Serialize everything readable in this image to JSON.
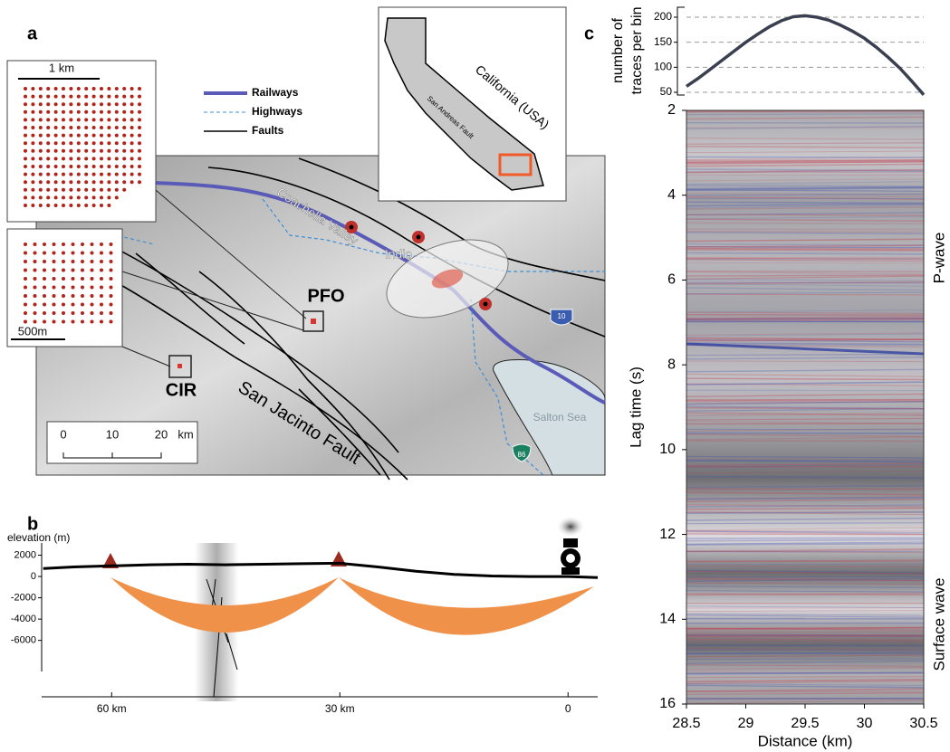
{
  "panel_labels": [
    "a",
    "b",
    "c"
  ],
  "map": {
    "legend": [
      "Railways",
      "Highways",
      "Faults"
    ],
    "places": {
      "coachella_valley": "Coachella Valley",
      "indio": "Indio",
      "pfo": "PFO",
      "cir": "CIR",
      "san_jacinto": "San Jacinto Fault",
      "salton_sea": "Salton Sea",
      "california": "California (USA)",
      "san_andreas": "San Andreas Fault"
    },
    "array_scales": [
      "1 km",
      "500m"
    ],
    "scale_bar": {
      "ticks": [
        "0",
        "10",
        "20"
      ],
      "unit": "km"
    },
    "shields": [
      "10",
      "86"
    ]
  },
  "chart_data": [
    {
      "type": "line",
      "y_label": "elevation (m)",
      "x": [
        69,
        65,
        60,
        55,
        50,
        45,
        40,
        35,
        30,
        25,
        20,
        15,
        10,
        5,
        0,
        -3.9
      ],
      "series": [
        {
          "color": "#000000",
          "values": [
            750,
            900,
            1000,
            1100,
            1150,
            1100,
            1150,
            1200,
            1250,
            900,
            500,
            200,
            50,
            0,
            0,
            -100
          ]
        }
      ],
      "xlim": [
        69.2,
        -3.9
      ],
      "ylim": [
        -11300,
        3150
      ],
      "xticks": [
        {
          "value": 60,
          "label": "60 km"
        },
        {
          "value": 30,
          "label": "30 km"
        },
        0
      ],
      "yticks": [
        2000,
        0,
        -2000,
        -4000,
        -6000
      ]
    },
    {
      "type": "line",
      "y_label": [
        "number of",
        "traces per bin"
      ],
      "x": [
        28.5,
        28.6,
        28.7,
        28.8,
        28.9,
        29,
        29.1,
        29.2,
        29.3,
        29.4,
        29.5,
        29.6,
        29.7,
        29.8,
        29.9,
        30,
        30.1,
        30.2,
        30.3,
        30.4,
        30.5
      ],
      "series": [
        {
          "color": "#3a4050",
          "values": [
            62,
            78,
            96,
            114,
            132,
            150,
            166,
            181,
            193,
            201,
            203,
            200,
            194,
            184,
            172,
            158,
            140,
            120,
            98,
            72,
            45
          ]
        }
      ],
      "xlim": [
        28.5,
        30.5
      ],
      "ylim": [
        44.6,
        219.9
      ],
      "yticks": [
        50,
        100,
        150,
        200
      ],
      "grid": true
    },
    {
      "type": "heatmap",
      "x_label": "Distance (km)",
      "y_label": "Lag time (s)",
      "annotations": [
        "P-wave",
        "Surface wave"
      ],
      "xlim": [
        28.5,
        30.5
      ],
      "ylim": [
        16,
        2
      ],
      "xticks": [
        28.5,
        29,
        29.5,
        30,
        30.5
      ],
      "yticks": [
        2,
        4,
        6,
        8,
        10,
        12,
        14,
        16
      ]
    }
  ]
}
